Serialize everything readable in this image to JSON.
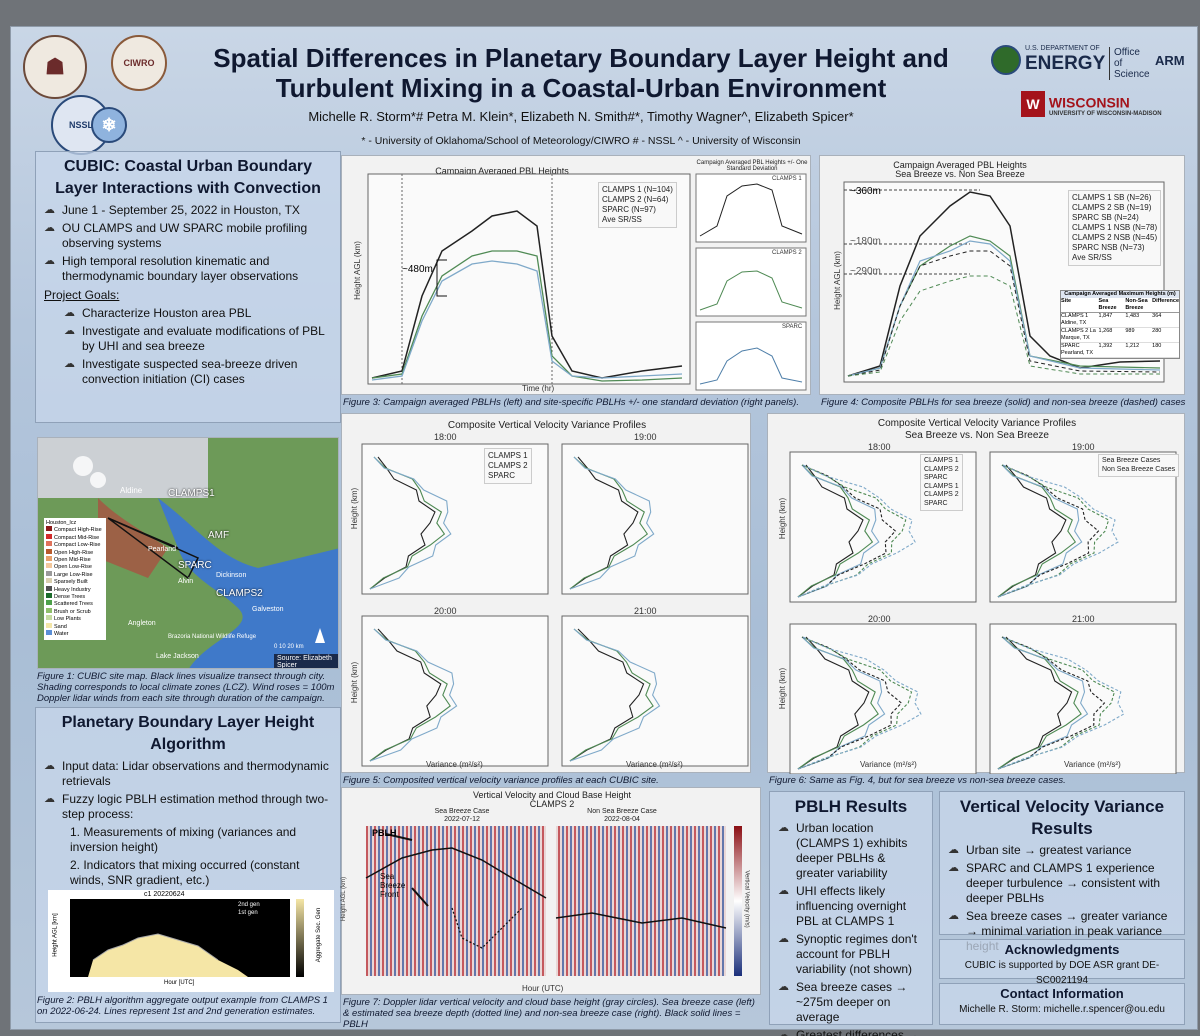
{
  "header": {
    "title_line1": "Spatial Differences in Planetary Boundary Layer Height and",
    "title_line2": "Turbulent Mixing in a Coastal-Urban Environment",
    "authors": "Michelle R. Storm*# Petra M. Klein*, Elizabeth N. Smith#*, Timothy Wagner^, Elizabeth Spicer*",
    "affiliations": "* - University of Oklahoma/School of Meteorology/CIWRO # - NSSL ^ - University of Wisconsin",
    "logo_ciwro": "CIWRO",
    "logo_nssl": "NSSL",
    "doe_small": "U.S. DEPARTMENT OF",
    "doe_big": "ENERGY",
    "office": "Office of Science",
    "arm": "ARM",
    "wisconsin": "WISCONSIN",
    "wisconsin_sub": "UNIVERSITY OF WISCONSIN-MADISON"
  },
  "cubic": {
    "title": "CUBIC: Coastal Urban Boundary Layer Interactions with Convection",
    "bullets": [
      "June 1 - September 25, 2022 in Houston, TX",
      "OU CLAMPS and UW SPARC mobile profiling observing systems",
      "High temporal resolution kinematic and thermodynamic boundary layer observations"
    ],
    "goals_label": "Project Goals:",
    "goals": [
      "Characterize Houston area PBL",
      "Investigate and evaluate modifications of PBL by UHI and sea breeze",
      "Investigate suspected sea-breeze driven convection initiation (CI) cases"
    ]
  },
  "map": {
    "labels": [
      "Aldine",
      "CLAMPS1",
      "AMF",
      "SPARC",
      "Pearland",
      "Dickinson",
      "CLAMPS2",
      "Alvin",
      "Galveston",
      "Angleton",
      "Lake Jackson",
      "Brazoria National Wildlife Refuge"
    ],
    "source": "Source: Elizabeth Spicer",
    "legend_title": "Houston_lcz",
    "legend": [
      "Compact High-Rise",
      "Compact Mid-Rise",
      "Compact Low-Rise",
      "Open High-Rise",
      "Open Mid-Rise",
      "Open Low-Rise",
      "Large Low-Rise",
      "Sparsely Built",
      "Heavy Industry",
      "Dense Trees",
      "Scattered Trees",
      "Brush or Scrub",
      "Low Plants",
      "Sand",
      "Water"
    ],
    "legend_colors": [
      "#8c1a1a",
      "#d22b2b",
      "#e0735c",
      "#b85a2c",
      "#e8a06a",
      "#f3c89c",
      "#9a9a9a",
      "#d9d0b0",
      "#505050",
      "#1b6b2b",
      "#4da04a",
      "#8fbf6a",
      "#c6dca0",
      "#f3e6a8",
      "#5b8fd6"
    ],
    "scale": "0 10 20 km",
    "caption": "Figure 1: CUBIC site map. Black lines visualize transect through city. Shading corresponds to local climate zones (LCZ). Wind roses = 100m Doppler lidar winds from each site through duration of the campaign."
  },
  "pblh_algo": {
    "title": "Planetary Boundary Layer Height Algorithm",
    "bullets": [
      "Input data: Lidar observations and thermodynamic retrievals",
      "Fuzzy logic PBLH estimation method through two-step process:"
    ],
    "steps": [
      "1. Measurements of mixing (variances and inversion height)",
      "2. Indicators that mixing occurred (constant winds, SNR gradient, etc.)"
    ],
    "fig_title": "c1 20220624",
    "fig_legend": [
      "2nd gen",
      "1st gen"
    ],
    "fig_ylabel": "Height AGL [km]",
    "fig_xlabel": "Hour [UTC]",
    "fig_cbar": "Aggregate Sec. Gen",
    "caption": "Figure 2: PBLH algorithm aggregate output example from CLAMPS 1 on 2022-06-24. Lines represent 1st and 2nd generation estimates."
  },
  "fig3": {
    "title": "Campaign Averaged PBL Heights",
    "right_title": "Campaign Averaged PBL Heights +/- One Standard Deviation",
    "legend": [
      "CLAMPS 1 (N=104)",
      "CLAMPS 2 (N=64)",
      "SPARC (N=97)",
      "Ave SR/SS"
    ],
    "annotation": "~480m",
    "xlabel": "Time (hr)",
    "ylabel": "Height AGL (km)",
    "panel_labels": [
      "CLAMPS 1",
      "CLAMPS 2",
      "SPARC"
    ],
    "caption": "Figure 3: Campaign averaged PBLHs (left) and site-specific PBLHs +/- one standard deviation (right panels)."
  },
  "fig4": {
    "title": "Campaign Averaged PBL Heights",
    "subtitle": "Sea Breeze vs. Non Sea Breeze",
    "legend": [
      "CLAMPS 1 SB (N=26)",
      "CLAMPS 2 SB (N=19)",
      "SPARC SB (N=24)",
      "CLAMPS 1 NSB (N=78)",
      "CLAMPS 2 NSB (N=45)",
      "SPARC NSB (N=73)",
      "Ave SR/SS"
    ],
    "annotations": [
      "~360m",
      "~180m",
      "~290m"
    ],
    "table_title": "Campaign Averaged Maximum Heights (m)",
    "table_headers": [
      "Site",
      "Sea Breeze",
      "Non-Sea Breeze",
      "Difference"
    ],
    "table_rows": [
      [
        "CLAMPS 1 Aldine, TX",
        "1,847",
        "1,483",
        "364"
      ],
      [
        "CLAMPS 2 La Marque, TX",
        "1,268",
        "989",
        "280"
      ],
      [
        "SPARC Pearland, TX",
        "1,392",
        "1,212",
        "180"
      ]
    ],
    "ylabel": "Height AGL (km)",
    "caption": "Figure 4: Composite PBLHs for sea breeze (solid) and non-sea breeze (dashed) cases"
  },
  "fig5": {
    "title": "Composite Vertical Velocity Variance Profiles",
    "panels": [
      "18:00",
      "19:00",
      "20:00",
      "21:00"
    ],
    "legend": [
      "CLAMPS 1",
      "CLAMPS 2",
      "SPARC"
    ],
    "xlabel": "Variance (m²/s²)",
    "ylabel": "Height (km)",
    "caption": "Figure 5: Composited vertical velocity variance profiles at each CUBIC site."
  },
  "fig6": {
    "title": "Composite Vertical Velocity Variance Profiles",
    "subtitle": "Sea Breeze vs. Non Sea Breeze",
    "panels": [
      "18:00",
      "19:00",
      "20:00",
      "21:00"
    ],
    "legend_a": [
      "CLAMPS 1",
      "CLAMPS 2",
      "SPARC",
      "CLAMPS 1",
      "CLAMPS 2",
      "SPARC"
    ],
    "legend_b": [
      "Sea Breeze Cases",
      "Non Sea Breeze Cases"
    ],
    "xlabel": "Variance (m²/s²)",
    "ylabel": "Height (km)",
    "caption": "Figure 6: Same as Fig. 4, but for sea breeze vs non-sea breeze cases."
  },
  "fig7": {
    "title": "Vertical Velocity and Cloud Base Height",
    "subtitle": "CLAMPS 2",
    "left_title": "Sea Breeze Case",
    "left_date": "2022-07-12",
    "right_title": "Non Sea Breeze Case",
    "right_date": "2022-08-04",
    "labels": [
      "PBLH",
      "Sea Breeze Front"
    ],
    "xlabel": "Hour (UTC)",
    "ylabel": "Height AGL (km)",
    "cbar": "Vertical Velocity (m/s)",
    "caption": "Figure 7: Doppler lidar vertical velocity and cloud base height (gray circles). Sea breeze case (left) & estimated sea breeze depth (dotted line) and non-sea breeze case (right). Black solid lines = PBLH"
  },
  "pblh_results": {
    "title": "PBLH Results",
    "bullets": [
      "Urban location (CLAMPS 1) exhibits deeper PBLHs & greater variability",
      "UHI effects likely influencing overnight PBL at CLAMPS 1",
      "Synoptic regimes don't account for PBLH variability (not shown)",
      "Sea breeze cases → ~275m deeper on average",
      "Greatest differences → Urban and coastal locations"
    ]
  },
  "vv_results": {
    "title": "Vertical Velocity Variance Results",
    "bullets": [
      "Urban site → greatest variance",
      "SPARC and CLAMPS 1 experience deeper turbulence → consistent with deeper PBLHs",
      "Sea breeze cases → greater variance → minimal variation in peak variance height"
    ]
  },
  "ack": {
    "title": "Acknowledgments",
    "text": "CUBIC is supported by DOE ASR grant DE-SC0021194"
  },
  "contact": {
    "title": "Contact Information",
    "text": "Michelle R. Storm: michelle.r.spencer@ou.edu"
  }
}
